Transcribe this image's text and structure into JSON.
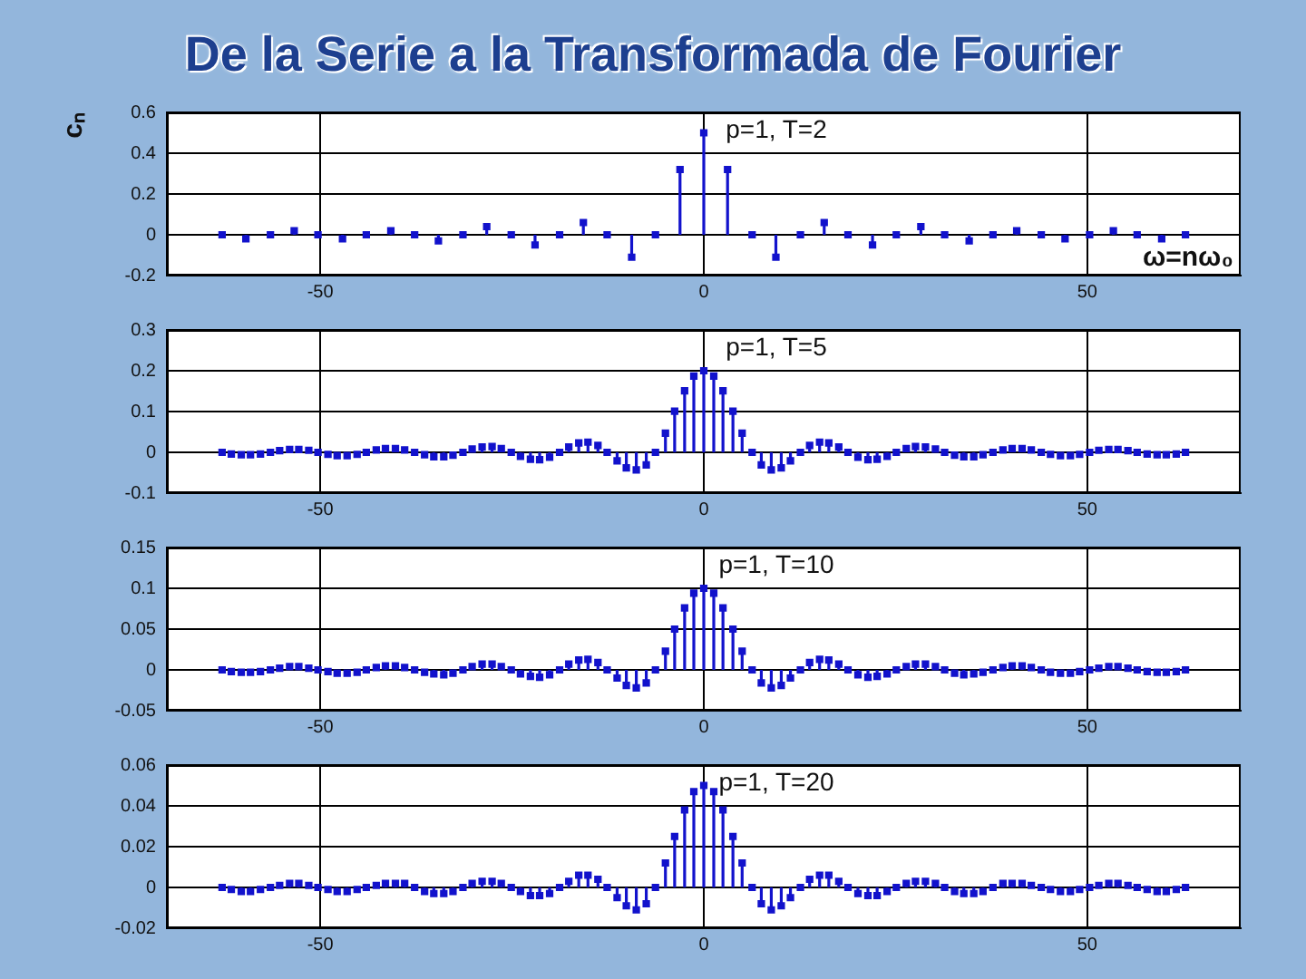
{
  "chart_data": [
    {
      "type": "lollipop",
      "title": "De la Serie a la Transformada de Fourier",
      "ylabel": "cₙ",
      "xlabel": "ω=nω₀",
      "annotations": [
        "p=1, T=2"
      ],
      "color": "#1212cc",
      "marker": "square",
      "grid": true,
      "xlim": [
        -70,
        70
      ],
      "xticks": [
        -50,
        0,
        50
      ],
      "ylim": [
        -0.2,
        0.6
      ],
      "yticks": [
        -0.2,
        0,
        0.2,
        0.4,
        0.6
      ],
      "x": [
        -62.8,
        -59.7,
        -56.5,
        -53.4,
        -50.3,
        -47.1,
        -44.0,
        -40.8,
        -37.7,
        -34.6,
        -31.4,
        -28.3,
        -25.1,
        -22.0,
        -18.8,
        -15.7,
        -12.6,
        -9.4,
        -6.3,
        -3.1,
        0,
        3.1,
        6.3,
        9.4,
        12.6,
        15.7,
        18.8,
        22.0,
        25.1,
        28.3,
        31.4,
        34.6,
        37.7,
        40.8,
        44.0,
        47.1,
        50.3,
        53.4,
        56.5,
        59.7,
        62.8
      ],
      "values": [
        0,
        -0.02,
        0,
        0.02,
        0,
        -0.02,
        0,
        0.02,
        0,
        -0.03,
        0,
        0.04,
        0,
        -0.05,
        0,
        0.06,
        0,
        -0.11,
        0,
        0.32,
        0.5,
        0.32,
        0,
        -0.11,
        0,
        0.06,
        0,
        -0.05,
        0,
        0.04,
        0,
        -0.03,
        0,
        0.02,
        0,
        -0.02,
        0,
        0.02,
        0,
        -0.02,
        0
      ]
    },
    {
      "type": "lollipop",
      "annotations": [
        "p=1, T=5"
      ],
      "color": "#1212cc",
      "marker": "square",
      "grid": true,
      "xlim": [
        -70,
        70
      ],
      "xticks": [
        -50,
        0,
        50
      ],
      "ylim": [
        -0.1,
        0.3
      ],
      "yticks": [
        -0.1,
        0,
        0.1,
        0.2,
        0.3
      ],
      "x": [
        -62.8,
        -61.6,
        -60.3,
        -59.1,
        -57.8,
        -56.5,
        -55.3,
        -54.0,
        -52.8,
        -51.5,
        -50.3,
        -49.0,
        -47.8,
        -46.5,
        -45.2,
        -44.0,
        -42.7,
        -41.5,
        -40.2,
        -39.0,
        -37.7,
        -36.4,
        -35.2,
        -33.9,
        -32.7,
        -31.4,
        -30.2,
        -28.9,
        -27.6,
        -26.4,
        -25.1,
        -23.9,
        -22.6,
        -21.4,
        -20.1,
        -18.8,
        -17.6,
        -16.3,
        -15.1,
        -13.8,
        -12.6,
        -11.3,
        -10.1,
        -8.8,
        -7.5,
        -6.3,
        -5.0,
        -3.8,
        -2.5,
        -1.3,
        0,
        1.3,
        2.5,
        3.8,
        5.0,
        6.3,
        7.5,
        8.8,
        10.1,
        11.3,
        12.6,
        13.8,
        15.1,
        16.3,
        17.6,
        18.8,
        20.1,
        21.4,
        22.6,
        23.9,
        25.1,
        26.4,
        27.6,
        28.9,
        30.2,
        31.4,
        32.7,
        33.9,
        35.2,
        36.4,
        37.7,
        39.0,
        40.2,
        41.5,
        42.7,
        44.0,
        45.2,
        46.5,
        47.8,
        49.0,
        50.3,
        51.5,
        52.8,
        54.0,
        55.3,
        56.5,
        57.8,
        59.1,
        60.3,
        61.6,
        62.8
      ],
      "values": [
        0,
        -0.004,
        -0.006,
        -0.006,
        -0.004,
        0,
        0.004,
        0.007,
        0.007,
        0.005,
        0,
        -0.005,
        -0.008,
        -0.008,
        -0.005,
        0,
        0.006,
        0.009,
        0.009,
        0.006,
        0,
        -0.006,
        -0.011,
        -0.011,
        -0.007,
        0,
        0.008,
        0.013,
        0.014,
        0.009,
        0,
        -0.01,
        -0.017,
        -0.018,
        -0.012,
        0,
        0.013,
        0.023,
        0.025,
        0.017,
        0,
        -0.021,
        -0.038,
        -0.043,
        -0.031,
        0,
        0.047,
        0.101,
        0.151,
        0.187,
        0.2,
        0.187,
        0.151,
        0.101,
        0.047,
        0,
        -0.031,
        -0.043,
        -0.038,
        -0.021,
        0,
        0.017,
        0.025,
        0.023,
        0.013,
        0,
        -0.012,
        -0.018,
        -0.017,
        -0.01,
        0,
        0.009,
        0.014,
        0.013,
        0.008,
        0,
        -0.007,
        -0.011,
        -0.011,
        -0.006,
        0,
        0.006,
        0.009,
        0.009,
        0.006,
        0,
        -0.005,
        -0.008,
        -0.008,
        -0.005,
        0,
        0.005,
        0.007,
        0.007,
        0.004,
        0,
        -0.004,
        -0.006,
        -0.006,
        -0.004,
        0
      ]
    },
    {
      "type": "lollipop",
      "annotations": [
        "p=1, T=10"
      ],
      "color": "#1212cc",
      "marker": "square",
      "grid": true,
      "xlim": [
        -70,
        70
      ],
      "xticks": [
        -50,
        0,
        50
      ],
      "ylim": [
        -0.05,
        0.15
      ],
      "yticks": [
        -0.05,
        0,
        0.05,
        0.1,
        0.15
      ],
      "x": [
        -62.8,
        -61.6,
        -60.3,
        -59.1,
        -57.8,
        -56.5,
        -55.3,
        -54.0,
        -52.8,
        -51.5,
        -50.3,
        -49.0,
        -47.8,
        -46.5,
        -45.2,
        -44.0,
        -42.7,
        -41.5,
        -40.2,
        -39.0,
        -37.7,
        -36.4,
        -35.2,
        -33.9,
        -32.7,
        -31.4,
        -30.2,
        -28.9,
        -27.6,
        -26.4,
        -25.1,
        -23.9,
        -22.6,
        -21.4,
        -20.1,
        -18.8,
        -17.6,
        -16.3,
        -15.1,
        -13.8,
        -12.6,
        -11.3,
        -10.1,
        -8.8,
        -7.5,
        -6.3,
        -5.0,
        -3.8,
        -2.5,
        -1.3,
        0,
        1.3,
        2.5,
        3.8,
        5.0,
        6.3,
        7.5,
        8.8,
        10.1,
        11.3,
        12.6,
        13.8,
        15.1,
        16.3,
        17.6,
        18.8,
        20.1,
        21.4,
        22.6,
        23.9,
        25.1,
        26.4,
        27.6,
        28.9,
        30.2,
        31.4,
        32.7,
        33.9,
        35.2,
        36.4,
        37.7,
        39.0,
        40.2,
        41.5,
        42.7,
        44.0,
        45.2,
        46.5,
        47.8,
        49.0,
        50.3,
        51.5,
        52.8,
        54.0,
        55.3,
        56.5,
        57.8,
        59.1,
        60.3,
        61.6,
        62.8
      ],
      "values": [
        0,
        -0.002,
        -0.003,
        -0.003,
        -0.002,
        0,
        0.002,
        0.004,
        0.004,
        0.002,
        0,
        -0.002,
        -0.004,
        -0.004,
        -0.003,
        0,
        0.003,
        0.005,
        0.005,
        0.003,
        0,
        -0.003,
        -0.005,
        -0.006,
        -0.004,
        0,
        0.004,
        0.007,
        0.007,
        0.004,
        0,
        -0.005,
        -0.008,
        -0.009,
        -0.006,
        0,
        0.007,
        0.012,
        0.013,
        0.009,
        0,
        -0.01,
        -0.019,
        -0.022,
        -0.016,
        0,
        0.023,
        0.05,
        0.076,
        0.094,
        0.1,
        0.094,
        0.076,
        0.05,
        0.023,
        0,
        -0.016,
        -0.022,
        -0.019,
        -0.01,
        0,
        0.009,
        0.013,
        0.012,
        0.007,
        0,
        -0.006,
        -0.009,
        -0.008,
        -0.005,
        0,
        0.004,
        0.007,
        0.007,
        0.004,
        0,
        -0.004,
        -0.006,
        -0.005,
        -0.003,
        0,
        0.003,
        0.005,
        0.005,
        0.003,
        0,
        -0.003,
        -0.004,
        -0.004,
        -0.002,
        0,
        0.002,
        0.004,
        0.004,
        0.002,
        0,
        -0.002,
        -0.003,
        -0.003,
        -0.002,
        0
      ]
    },
    {
      "type": "lollipop",
      "annotations": [
        "p=1, T=20"
      ],
      "color": "#1212cc",
      "marker": "square",
      "grid": true,
      "xlim": [
        -70,
        70
      ],
      "xticks": [
        -50,
        0,
        50
      ],
      "ylim": [
        -0.02,
        0.06
      ],
      "yticks": [
        -0.02,
        0,
        0.02,
        0.04,
        0.06
      ],
      "x": [
        -62.8,
        -61.6,
        -60.3,
        -59.1,
        -57.8,
        -56.5,
        -55.3,
        -54.0,
        -52.8,
        -51.5,
        -50.3,
        -49.0,
        -47.8,
        -46.5,
        -45.2,
        -44.0,
        -42.7,
        -41.5,
        -40.2,
        -39.0,
        -37.7,
        -36.4,
        -35.2,
        -33.9,
        -32.7,
        -31.4,
        -30.2,
        -28.9,
        -27.6,
        -26.4,
        -25.1,
        -23.9,
        -22.6,
        -21.4,
        -20.1,
        -18.8,
        -17.6,
        -16.3,
        -15.1,
        -13.8,
        -12.6,
        -11.3,
        -10.1,
        -8.8,
        -7.5,
        -6.3,
        -5.0,
        -3.8,
        -2.5,
        -1.3,
        0,
        1.3,
        2.5,
        3.8,
        5.0,
        6.3,
        7.5,
        8.8,
        10.1,
        11.3,
        12.6,
        13.8,
        15.1,
        16.3,
        17.6,
        18.8,
        20.1,
        21.4,
        22.6,
        23.9,
        25.1,
        26.4,
        27.6,
        28.9,
        30.2,
        31.4,
        32.7,
        33.9,
        35.2,
        36.4,
        37.7,
        39.0,
        40.2,
        41.5,
        42.7,
        44.0,
        45.2,
        46.5,
        47.8,
        49.0,
        50.3,
        51.5,
        52.8,
        54.0,
        55.3,
        56.5,
        57.8,
        59.1,
        60.3,
        61.6,
        62.8
      ],
      "values": [
        0,
        -0.001,
        -0.002,
        -0.002,
        -0.001,
        0,
        0.001,
        0.002,
        0.002,
        0.001,
        0,
        -0.001,
        -0.002,
        -0.002,
        -0.001,
        0,
        0.001,
        0.002,
        0.002,
        0.002,
        0,
        -0.002,
        -0.003,
        -0.003,
        -0.002,
        0,
        0.002,
        0.003,
        0.003,
        0.002,
        0,
        -0.002,
        -0.004,
        -0.004,
        -0.003,
        0,
        0.003,
        0.006,
        0.006,
        0.004,
        0,
        -0.005,
        -0.009,
        -0.011,
        -0.008,
        0,
        0.012,
        0.025,
        0.038,
        0.047,
        0.05,
        0.047,
        0.038,
        0.025,
        0.012,
        0,
        -0.008,
        -0.011,
        -0.009,
        -0.005,
        0,
        0.004,
        0.006,
        0.006,
        0.003,
        0,
        -0.003,
        -0.004,
        -0.004,
        -0.002,
        0,
        0.002,
        0.003,
        0.003,
        0.002,
        0,
        -0.002,
        -0.003,
        -0.003,
        -0.002,
        0,
        0.002,
        0.002,
        0.002,
        0.001,
        0,
        -0.001,
        -0.002,
        -0.002,
        -0.001,
        0,
        0.001,
        0.002,
        0.002,
        0.001,
        0,
        -0.001,
        -0.002,
        -0.002,
        -0.001,
        0
      ]
    }
  ]
}
